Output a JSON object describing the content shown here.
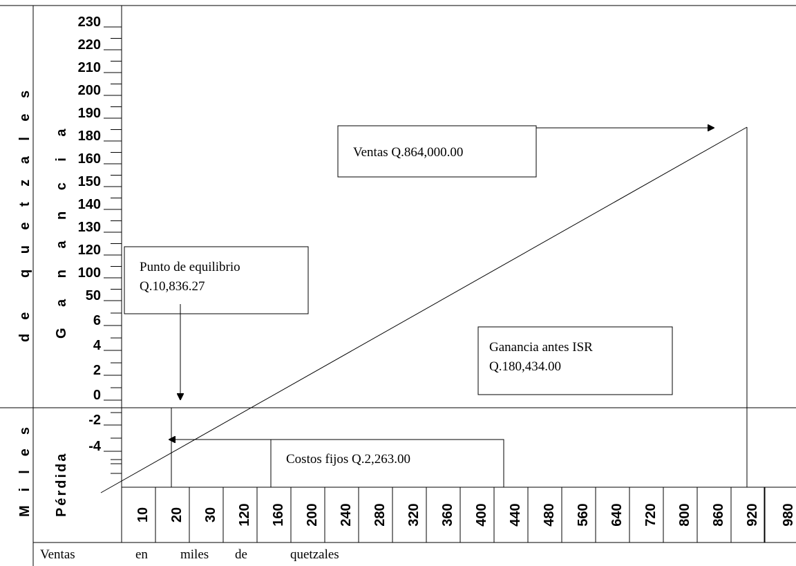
{
  "y_axis": {
    "outer_words": [
      "Miles",
      "de",
      "quetzales"
    ],
    "profit_label": "Ganancia",
    "loss_label": "Pérdida",
    "labels": [
      "230",
      "220",
      "210",
      "200",
      "190",
      "180",
      "160",
      "150",
      "140",
      "130",
      "120",
      "100",
      "50",
      "6",
      "4",
      "2",
      "0",
      "-2",
      "-4"
    ]
  },
  "x_axis": {
    "labels": [
      "10",
      "20",
      "30",
      "120",
      "160",
      "200",
      "240",
      "280",
      "320",
      "360",
      "400",
      "440",
      "480",
      "560",
      "640",
      "720",
      "800",
      "860",
      "920",
      "980"
    ],
    "title_words": [
      "Ventas",
      "en",
      "miles",
      "de",
      "quetzales"
    ]
  },
  "annotations": {
    "sales": "Ventas Q.864,000.00",
    "break_even": [
      "Punto de equilibrio",
      "Q.10,836.27"
    ],
    "profit": [
      "Ganancia antes ISR",
      "Q.180,434.00"
    ],
    "fixed_costs": "Costos fijos Q.2,263.00"
  }
}
